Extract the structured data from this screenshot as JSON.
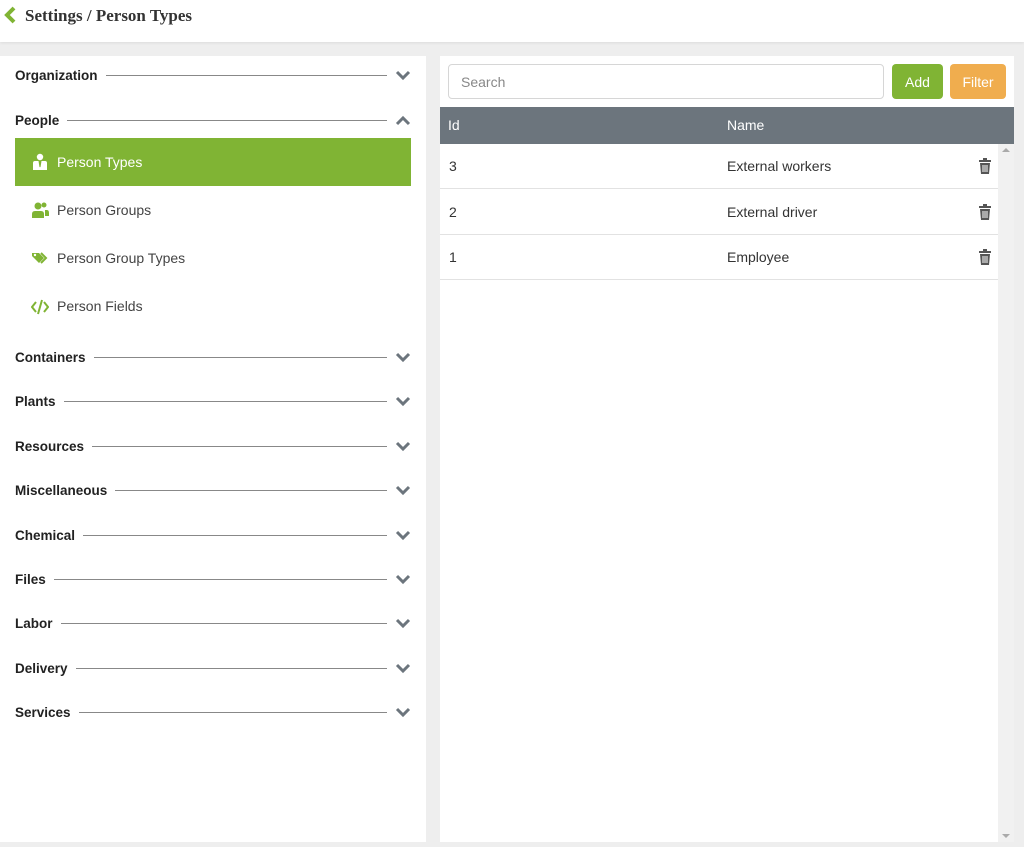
{
  "header": {
    "title": "Settings / Person Types"
  },
  "colors": {
    "accent": "#80b434",
    "filter": "#f0ad4e",
    "table_header": "#6c757d"
  },
  "sidebar": {
    "sections": [
      {
        "label": "Organization",
        "expanded": false
      },
      {
        "label": "People",
        "expanded": true,
        "items": [
          {
            "label": "Person Types",
            "icon": "person-tie-icon",
            "active": true
          },
          {
            "label": "Person Groups",
            "icon": "users-icon",
            "active": false
          },
          {
            "label": "Person Group Types",
            "icon": "tags-icon",
            "active": false
          },
          {
            "label": "Person Fields",
            "icon": "code-icon",
            "active": false
          }
        ]
      },
      {
        "label": "Containers",
        "expanded": false
      },
      {
        "label": "Plants",
        "expanded": false
      },
      {
        "label": "Resources",
        "expanded": false
      },
      {
        "label": "Miscellaneous",
        "expanded": false
      },
      {
        "label": "Chemical",
        "expanded": false
      },
      {
        "label": "Files",
        "expanded": false
      },
      {
        "label": "Labor",
        "expanded": false
      },
      {
        "label": "Delivery",
        "expanded": false
      },
      {
        "label": "Services",
        "expanded": false
      }
    ]
  },
  "toolbar": {
    "search_placeholder": "Search",
    "search_value": "",
    "add_label": "Add",
    "filter_label": "Filter"
  },
  "table": {
    "columns": [
      "Id",
      "Name"
    ],
    "rows": [
      {
        "id": "3",
        "name": "External workers"
      },
      {
        "id": "2",
        "name": "External driver"
      },
      {
        "id": "1",
        "name": "Employee"
      }
    ]
  }
}
